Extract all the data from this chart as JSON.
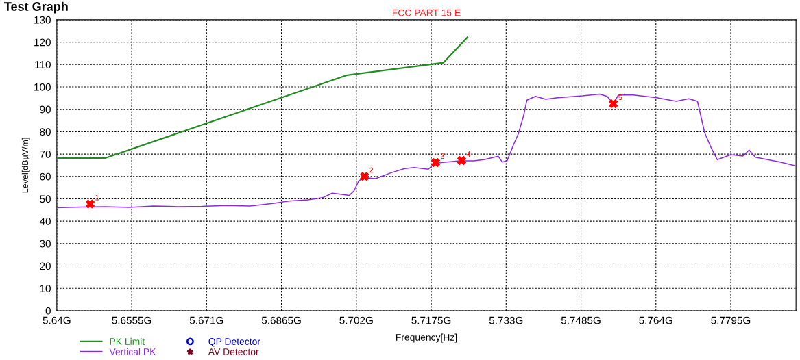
{
  "chart_data": {
    "type": "line",
    "title": "Test Graph",
    "subtitle": "FCC PART 15 E",
    "xlabel": "Frequency[Hz]",
    "ylabel": "Level[dBμV/m]",
    "xlim": [
      5.64,
      5.793
    ],
    "ylim": [
      0,
      130
    ],
    "xticks": [
      {
        "value": 5.64,
        "label": "5.64G"
      },
      {
        "value": 5.6555,
        "label": "5.6555G"
      },
      {
        "value": 5.671,
        "label": "5.671G"
      },
      {
        "value": 5.6865,
        "label": "5.6865G"
      },
      {
        "value": 5.702,
        "label": "5.702G"
      },
      {
        "value": 5.7175,
        "label": "5.7175G"
      },
      {
        "value": 5.733,
        "label": "5.733G"
      },
      {
        "value": 5.7485,
        "label": "5.7485G"
      },
      {
        "value": 5.764,
        "label": "5.764G"
      },
      {
        "value": 5.7795,
        "label": "5.7795G"
      }
    ],
    "yticks": [
      0,
      10,
      20,
      30,
      40,
      50,
      60,
      70,
      80,
      90,
      100,
      110,
      120,
      130
    ],
    "grid": true,
    "legend": "bottom left",
    "series": [
      {
        "name": "PK Limit",
        "color": "#228b22",
        "marker": "none",
        "x": [
          5.64,
          5.65,
          5.7,
          5.72,
          5.725
        ],
        "values": [
          68.2,
          68.2,
          105.2,
          110.8,
          122.2
        ]
      },
      {
        "name": "Vertical PK",
        "color": "#8a2be2",
        "marker": "none",
        "x": [
          5.64,
          5.645,
          5.65,
          5.655,
          5.66,
          5.665,
          5.67,
          5.675,
          5.68,
          5.685,
          5.688,
          5.692,
          5.695,
          5.697,
          5.699,
          5.7005,
          5.7015,
          5.7025,
          5.7035,
          5.706,
          5.709,
          5.712,
          5.714,
          5.7169,
          5.7182,
          5.7233,
          5.7263,
          5.7284,
          5.7314,
          5.7322,
          5.7332,
          5.7345,
          5.7355,
          5.7366,
          5.7373,
          5.7391,
          5.7412,
          5.7437,
          5.7488,
          5.7524,
          5.7539,
          5.7552,
          5.7562,
          5.759,
          5.7642,
          5.7682,
          5.7708,
          5.7726,
          5.7741,
          5.7754,
          5.7767,
          5.7795,
          5.782,
          5.7833,
          5.7846,
          5.7897,
          5.7928
        ],
        "values": [
          46,
          46.3,
          46.5,
          46.2,
          46.8,
          46.5,
          46.6,
          47,
          46.8,
          48,
          49,
          49.5,
          50.5,
          52.5,
          52,
          51.5,
          53.5,
          58,
          59.5,
          59,
          61.5,
          63.5,
          64,
          63.2,
          65.9,
          67,
          67,
          67.5,
          69,
          66.4,
          67,
          74,
          78.9,
          87,
          94.1,
          95.8,
          94.5,
          95.2,
          96,
          96.8,
          95.8,
          92.5,
          96.3,
          96.5,
          95.2,
          93.6,
          94.7,
          93.6,
          79.5,
          73,
          67.5,
          69.7,
          69.1,
          71.8,
          68.6,
          66.4,
          64.8
        ]
      },
      {
        "name": "QP Detector",
        "type": "scatter",
        "color": "#0000cd",
        "marker": "circle"
      },
      {
        "name": "AV Detector",
        "type": "scatter",
        "color": "#800020",
        "marker": "star"
      },
      {
        "type": "scatter",
        "color": "#ff0000",
        "marker": "cross",
        "x": [
          5.6469,
          5.7037,
          5.7184,
          5.7238,
          5.7552
        ],
        "values": [
          47.7,
          60,
          66.2,
          67.1,
          92.5
        ]
      }
    ],
    "annotations": [
      {
        "text": "1",
        "x": 5.6469,
        "y": 47.7
      },
      {
        "text": "2",
        "x": 5.7037,
        "y": 60
      },
      {
        "text": "3",
        "x": 5.7184,
        "y": 66.2
      },
      {
        "text": "4",
        "x": 5.7238,
        "y": 67.1
      },
      {
        "text": "5",
        "x": 5.7552,
        "y": 92.5
      }
    ]
  }
}
